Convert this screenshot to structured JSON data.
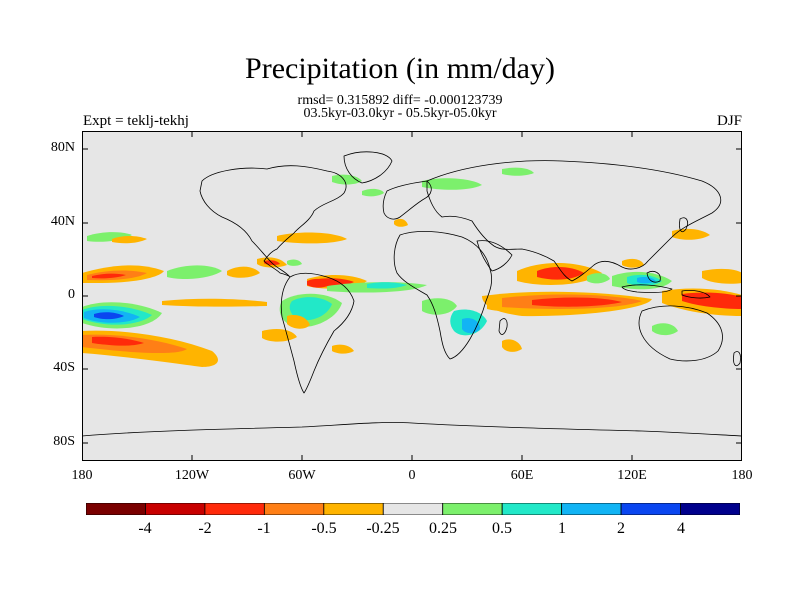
{
  "header": {
    "title": "Precipitation (in mm/day)",
    "stats": "rmsd= 0.315892 diff= -0.000123739",
    "period": "03.5kyr-03.0kyr - 05.5kyr-05.0kyr",
    "experiment": "Expt = teklj-tekhj",
    "season": "DJF"
  },
  "axes": {
    "y_labels": [
      "80N",
      "40N",
      "0",
      "40S",
      "80S"
    ],
    "x_labels": [
      "180",
      "120W",
      "60W",
      "0",
      "60E",
      "120E",
      "180"
    ]
  },
  "colorbar": {
    "labels": [
      "-4",
      "-2",
      "-1",
      "-0.5",
      "-0.25",
      "0.25",
      "0.5",
      "1",
      "2",
      "4"
    ],
    "colors": [
      "#7a0000",
      "#c80000",
      "#ff2a0a",
      "#ff7f16",
      "#ffb400",
      "#e6e6e6",
      "#7cf06c",
      "#22e8c8",
      "#12b4f4",
      "#0a46f0",
      "#00008c"
    ]
  },
  "colors": {
    "map_background": "#e6e6e6",
    "coastline": "#000000"
  }
}
